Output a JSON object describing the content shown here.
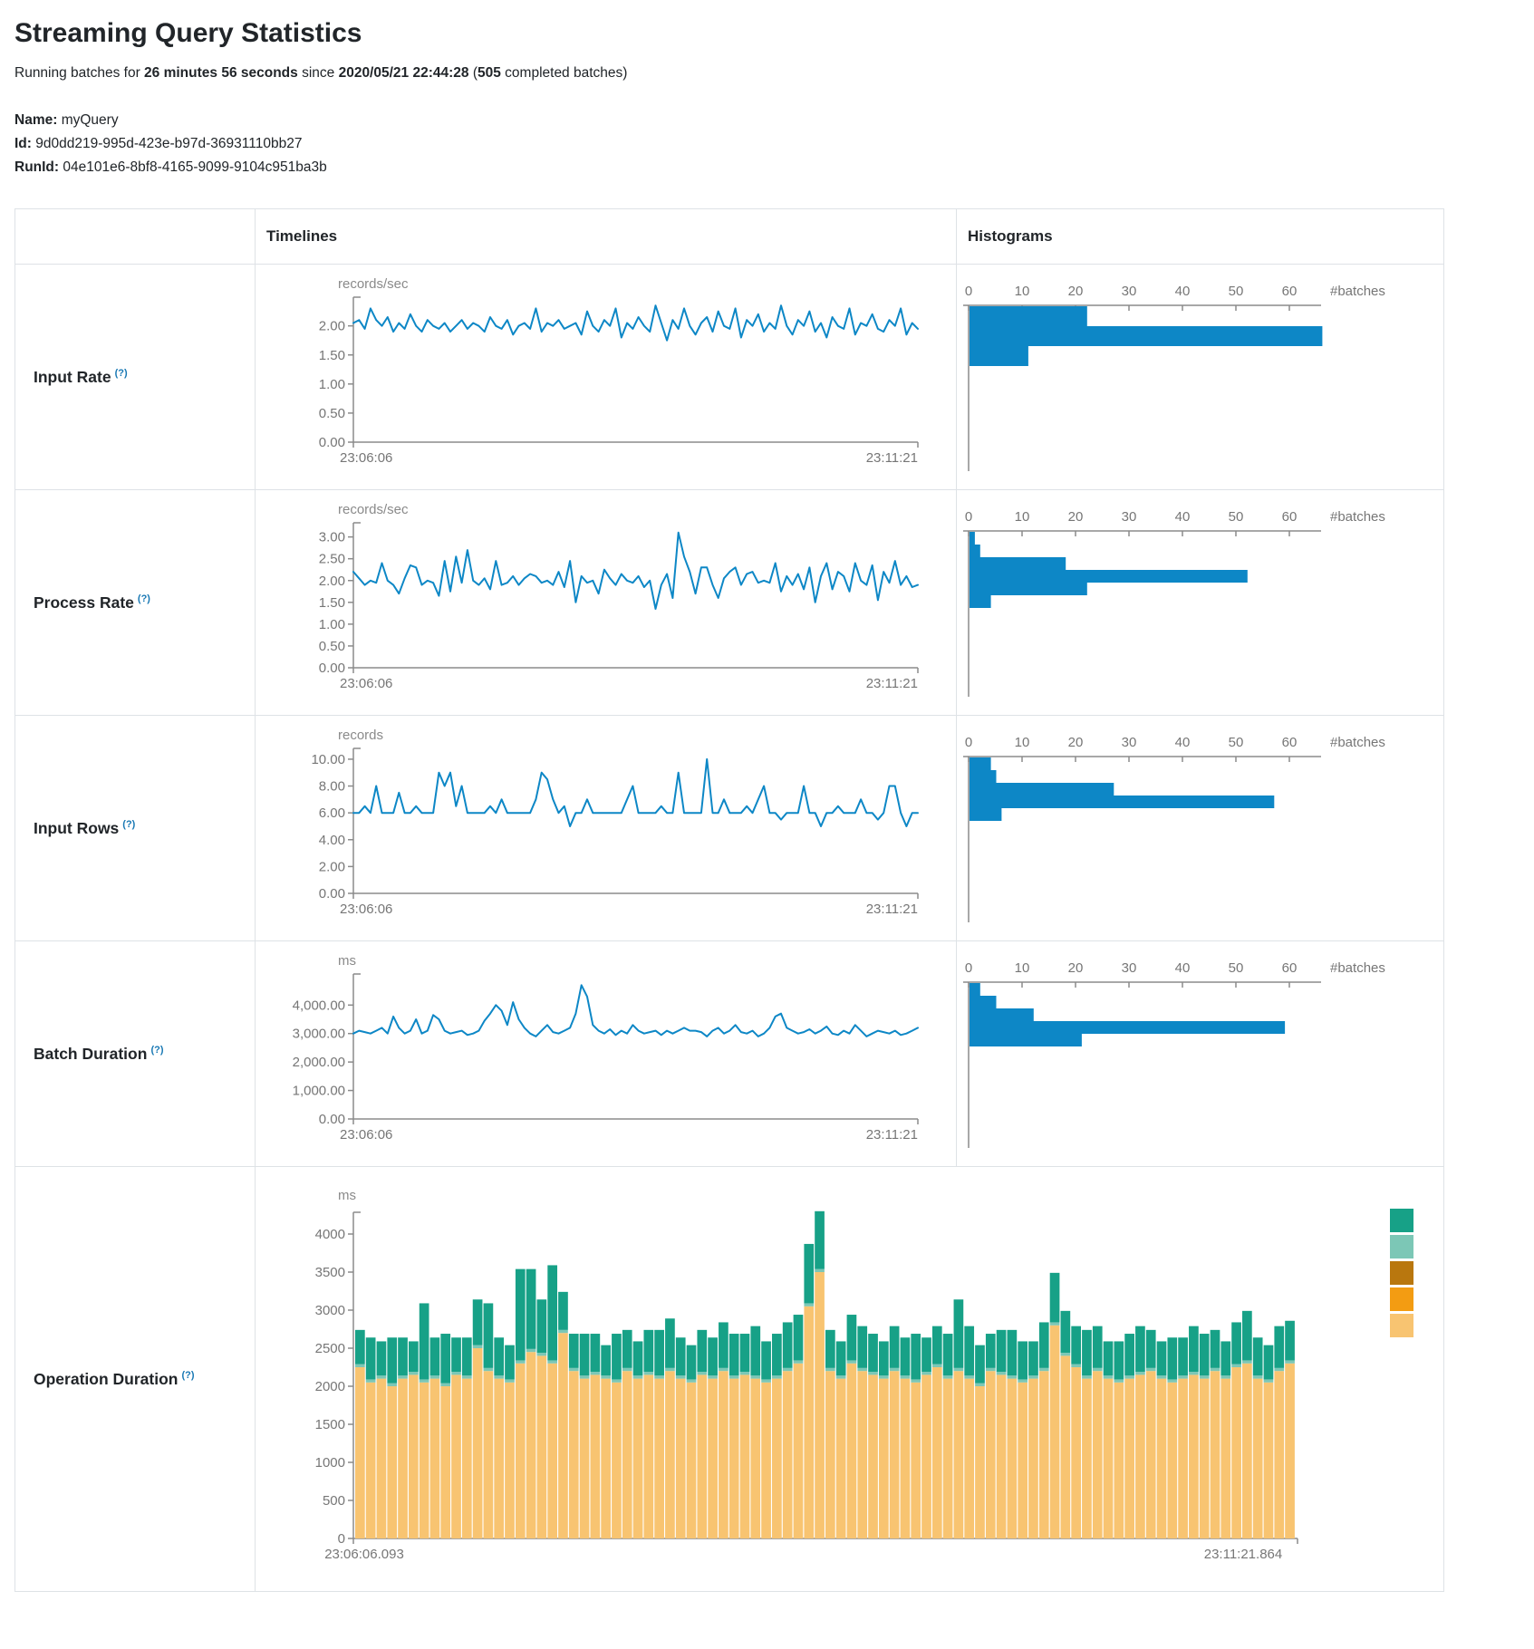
{
  "page": {
    "title": "Streaming Query Statistics",
    "subtitle": {
      "prefix": "Running batches for ",
      "duration": "26 minutes 56 seconds",
      "mid": " since ",
      "start_time": "2020/05/21 22:44:28",
      "paren": " (",
      "completed_batches": "505",
      "suffix": " completed batches)"
    },
    "name_label": "Name:",
    "name_value": "myQuery",
    "id_label": "Id:",
    "id_value": "9d0dd219-995d-423e-b97d-36931110bb27",
    "runid_label": "RunId:",
    "runid_value": "04e101e6-8bf8-4165-9099-9104c951ba3b"
  },
  "table": {
    "col_timelines": "Timelines",
    "col_histograms": "Histograms",
    "help_symbol": "(?)"
  },
  "colors": {
    "line_blue": "#0d87c6",
    "hist_blue": "#0d87c6",
    "axis": "#8b8b8b",
    "tick_label": "#767676",
    "unit_label": "#8a8a8a"
  },
  "chart_data": [
    {
      "row": "Input Rate",
      "timeline": {
        "type": "line",
        "unit": "records/sec",
        "x_start": "23:06:06",
        "x_end": "23:11:21",
        "y_tick_values": [
          0,
          0.5,
          1,
          1.5,
          2
        ],
        "y_tick_labels": [
          "0.00",
          "0.50",
          "1.00",
          "1.50",
          "2.00"
        ],
        "y_plot_max": 2.4,
        "values": [
          2.05,
          2.1,
          1.95,
          2.3,
          2.1,
          2.0,
          2.15,
          1.9,
          2.05,
          1.95,
          2.2,
          2.0,
          1.9,
          2.1,
          2.0,
          1.95,
          2.05,
          1.9,
          2.0,
          2.1,
          1.95,
          2.05,
          2.0,
          1.9,
          2.15,
          2.0,
          1.95,
          2.1,
          1.85,
          2.0,
          2.05,
          1.95,
          2.3,
          1.9,
          2.05,
          2.0,
          2.1,
          1.95,
          2.0,
          2.05,
          1.85,
          2.25,
          2.0,
          1.9,
          2.1,
          2.0,
          2.3,
          1.8,
          2.05,
          1.95,
          2.15,
          2.0,
          1.9,
          2.35,
          2.05,
          1.75,
          2.1,
          1.95,
          2.3,
          2.0,
          1.85,
          2.05,
          2.15,
          1.9,
          2.25,
          2.0,
          1.95,
          2.3,
          1.8,
          2.1,
          2.0,
          2.2,
          1.9,
          2.05,
          1.95,
          2.35,
          2.0,
          1.85,
          2.1,
          2.0,
          2.25,
          1.9,
          2.05,
          1.8,
          2.15,
          2.0,
          1.95,
          2.3,
          1.85,
          2.05,
          2.0,
          2.2,
          1.95,
          1.9,
          2.1,
          2.0,
          2.3,
          1.85,
          2.05,
          1.95
        ]
      },
      "histogram": {
        "type": "bar",
        "orientation": "horizontal",
        "axis_ticks": [
          0,
          10,
          20,
          30,
          40,
          50,
          60
        ],
        "axis_label": "#batches",
        "bin_counts": [
          22,
          66,
          11
        ]
      }
    },
    {
      "row": "Process Rate",
      "timeline": {
        "type": "line",
        "unit": "records/sec",
        "x_start": "23:06:06",
        "x_end": "23:11:21",
        "y_tick_values": [
          0,
          0.5,
          1,
          1.5,
          2,
          2.5,
          3
        ],
        "y_tick_labels": [
          "0.00",
          "0.50",
          "1.00",
          "1.50",
          "2.00",
          "2.50",
          "3.00"
        ],
        "y_plot_max": 3.2,
        "values": [
          2.2,
          2.05,
          1.9,
          2.0,
          1.95,
          2.4,
          2.0,
          1.9,
          1.7,
          2.05,
          2.35,
          2.3,
          1.9,
          2.0,
          1.95,
          1.65,
          2.45,
          1.75,
          2.55,
          1.95,
          2.7,
          2.0,
          1.9,
          2.05,
          1.8,
          2.45,
          1.9,
          1.95,
          2.1,
          1.9,
          2.05,
          2.15,
          2.1,
          1.95,
          2.0,
          1.9,
          2.2,
          1.85,
          2.45,
          1.5,
          2.1,
          1.95,
          2.0,
          1.7,
          2.25,
          2.05,
          1.9,
          2.15,
          2.0,
          1.95,
          2.1,
          1.85,
          2.0,
          1.35,
          1.9,
          2.15,
          1.6,
          3.1,
          2.55,
          2.2,
          1.7,
          2.3,
          2.3,
          1.9,
          1.6,
          2.05,
          2.2,
          2.3,
          1.9,
          2.15,
          2.2,
          1.95,
          2.0,
          1.95,
          2.4,
          1.75,
          2.1,
          1.9,
          2.15,
          1.8,
          2.3,
          1.5,
          2.1,
          2.4,
          1.8,
          2.2,
          2.1,
          1.75,
          2.4,
          2.0,
          1.9,
          2.35,
          1.55,
          2.2,
          1.95,
          2.45,
          1.9,
          2.1,
          1.85,
          1.9
        ]
      },
      "histogram": {
        "type": "bar",
        "orientation": "horizontal",
        "axis_ticks": [
          0,
          10,
          20,
          30,
          40,
          50,
          60
        ],
        "axis_label": "#batches",
        "bin_counts": [
          1,
          2,
          18,
          52,
          22,
          4
        ]
      }
    },
    {
      "row": "Input Rows",
      "timeline": {
        "type": "line",
        "unit": "records",
        "x_start": "23:06:06",
        "x_end": "23:11:21",
        "y_tick_values": [
          0,
          2,
          4,
          6,
          8,
          10
        ],
        "y_tick_labels": [
          "0.00",
          "2.00",
          "4.00",
          "6.00",
          "8.00",
          "10.00"
        ],
        "y_plot_max": 10.4,
        "values": [
          6,
          6,
          6.5,
          6,
          8,
          6,
          6,
          6,
          7.5,
          6,
          6,
          6.5,
          6,
          6,
          6,
          9,
          8,
          9,
          6.5,
          8,
          6,
          6,
          6,
          6,
          6.5,
          6,
          7,
          6,
          6,
          6,
          6,
          6,
          7,
          9,
          8.5,
          7,
          6,
          6.5,
          5,
          6,
          6,
          7,
          6,
          6,
          6,
          6,
          6,
          6,
          7,
          8,
          6,
          6,
          6,
          6,
          6.5,
          6,
          6,
          9,
          6,
          6,
          6,
          6,
          10,
          6,
          6,
          7,
          6,
          6,
          6,
          6.5,
          6,
          7,
          8,
          6,
          6,
          5.5,
          6,
          6,
          6,
          8,
          6,
          6,
          5,
          6,
          6,
          6.5,
          6,
          6,
          6,
          7,
          6,
          6,
          5.5,
          6,
          8,
          8,
          6,
          5,
          6,
          6
        ]
      },
      "histogram": {
        "type": "bar",
        "orientation": "horizontal",
        "axis_ticks": [
          0,
          10,
          20,
          30,
          40,
          50,
          60
        ],
        "axis_label": "#batches",
        "bin_counts": [
          4,
          5,
          27,
          57,
          6
        ]
      }
    },
    {
      "row": "Batch Duration",
      "timeline": {
        "type": "line",
        "unit": "ms",
        "x_start": "23:06:06",
        "x_end": "23:11:21",
        "y_tick_values": [
          0,
          1000,
          2000,
          3000,
          4000
        ],
        "y_tick_labels": [
          "0.00",
          "1,000.00",
          "2,000.00",
          "3,000.00",
          "4,000.00"
        ],
        "y_plot_max": 4900,
        "values": [
          3000,
          3100,
          3050,
          3000,
          3100,
          3200,
          3000,
          3600,
          3200,
          3000,
          3100,
          3500,
          3000,
          3100,
          3650,
          3500,
          3100,
          3000,
          3050,
          3100,
          2950,
          3000,
          3100,
          3450,
          3700,
          4000,
          3800,
          3300,
          4100,
          3500,
          3200,
          3000,
          2900,
          3100,
          3300,
          3050,
          3000,
          3100,
          3200,
          3700,
          4700,
          4300,
          3300,
          3100,
          3000,
          3150,
          2950,
          3100,
          3000,
          3300,
          3100,
          3000,
          3050,
          3100,
          2950,
          3100,
          3000,
          3100,
          3200,
          3100,
          3100,
          3050,
          2900,
          3100,
          3200,
          3000,
          3100,
          3300,
          3050,
          3000,
          3100,
          2900,
          3000,
          3200,
          3600,
          3700,
          3200,
          3100,
          3000,
          3050,
          3150,
          3000,
          3100,
          3250,
          3000,
          2950,
          3100,
          3000,
          3300,
          3100,
          2900,
          3000,
          3100,
          3050,
          3000,
          3100,
          2950,
          3000,
          3100,
          3200
        ]
      },
      "histogram": {
        "type": "bar",
        "orientation": "horizontal",
        "axis_ticks": [
          0,
          10,
          20,
          30,
          40,
          50,
          60
        ],
        "axis_label": "#batches",
        "bin_counts": [
          2,
          5,
          12,
          59,
          21
        ]
      }
    },
    {
      "row": "Operation Duration",
      "timeline": {
        "type": "stacked-bar",
        "unit": "ms",
        "x_start": "23:06:06.093",
        "x_end": "23:11:21.864",
        "y_tick_values": [
          0,
          500,
          1000,
          1500,
          2000,
          2500,
          3000,
          3500,
          4000
        ],
        "y_tick_labels": [
          "0",
          "500",
          "1000",
          "1500",
          "2000",
          "2500",
          "3000",
          "3500",
          "4000"
        ],
        "y_plot_max": 4900,
        "series": [
          {
            "name": "light-orange-segment",
            "color": "#F8C471",
            "values": [
              2250,
              2050,
              2100,
              2000,
              2100,
              2150,
              2050,
              2100,
              2000,
              2150,
              2100,
              2500,
              2200,
              2100,
              2050,
              2300,
              2450,
              2400,
              2300,
              2700,
              2200,
              2100,
              2150,
              2100,
              2050,
              2200,
              2100,
              2150,
              2100,
              2200,
              2100,
              2050,
              2150,
              2100,
              2200,
              2100,
              2150,
              2100,
              2050,
              2100,
              2200,
              2300,
              3050,
              3500,
              2200,
              2100,
              2300,
              2200,
              2150,
              2100,
              2200,
              2100,
              2050,
              2150,
              2250,
              2100,
              2200,
              2100,
              2000,
              2200,
              2150,
              2100,
              2050,
              2100,
              2200,
              2800,
              2400,
              2250,
              2100,
              2200,
              2100,
              2050,
              2100,
              2150,
              2200,
              2100,
              2050,
              2100,
              2150,
              2100,
              2200,
              2100,
              2250,
              2300,
              2100,
              2050,
              2200,
              2300
            ]
          },
          {
            "name": "light-teal-segment",
            "color": "#7CC7B6",
            "constant": 40
          },
          {
            "name": "teal-segment",
            "color": "#17A187",
            "values": [
              450,
              550,
              450,
              600,
              500,
              400,
              1000,
              500,
              650,
              450,
              500,
              600,
              850,
              500,
              450,
              1200,
              1050,
              700,
              1250,
              500,
              450,
              550,
              500,
              400,
              600,
              500,
              450,
              550,
              600,
              650,
              500,
              450,
              550,
              500,
              600,
              550,
              500,
              650,
              500,
              550,
              600,
              600,
              780,
              760,
              500,
              450,
              600,
              550,
              500,
              450,
              550,
              500,
              600,
              450,
              500,
              550,
              900,
              650,
              500,
              450,
              550,
              600,
              500,
              450,
              600,
              650,
              550,
              500,
              600,
              550,
              450,
              500,
              550,
              600,
              500,
              450,
              550,
              500,
              600,
              550,
              500,
              450,
              550,
              650,
              500,
              450,
              550,
              520
            ]
          }
        ],
        "legend_colors": [
          "#17A187",
          "#7CC7B6",
          "#B9770E",
          "#F39C12",
          "#F8C471"
        ]
      }
    }
  ]
}
